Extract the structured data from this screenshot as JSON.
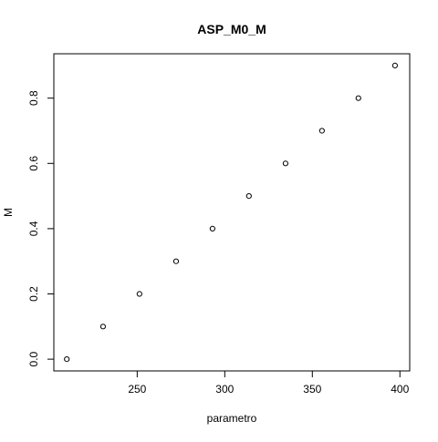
{
  "chart_data": {
    "type": "scatter",
    "title": "ASP_M0_M",
    "xlabel": "parametro",
    "ylabel": "M",
    "xlim": [
      202.4,
      405.6
    ],
    "ylim": [
      -0.036,
      0.936
    ],
    "x_ticks": [
      250,
      300,
      350,
      400
    ],
    "y_ticks": [
      0.0,
      0.2,
      0.4,
      0.6,
      0.8
    ],
    "y_tick_labels": [
      "0.0",
      "0.2",
      "0.4",
      "0.6",
      "0.8"
    ],
    "grid": false,
    "legend": "none",
    "marker": "open-circle",
    "series": [
      {
        "x": [
          209.8,
          230.5,
          251.3,
          272.2,
          293.0,
          313.8,
          334.7,
          355.5,
          376.3,
          397.2
        ],
        "y": [
          0.0,
          0.1,
          0.2,
          0.3,
          0.4,
          0.5,
          0.6,
          0.7,
          0.8,
          0.9
        ]
      }
    ]
  }
}
